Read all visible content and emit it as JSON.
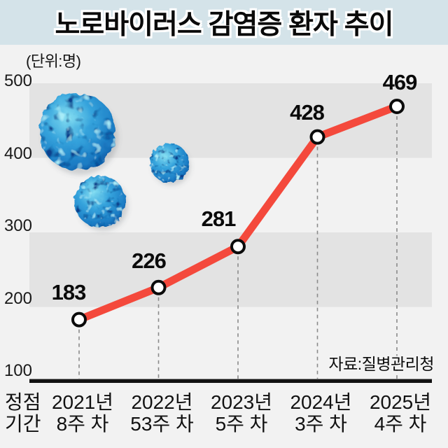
{
  "title": "노로바이러스 감염증 환자 추이",
  "unit_label": "(단위:명)",
  "source_label": "자료:질병관리청",
  "x_axis_caption": {
    "line1": "정점",
    "line2": "기간"
  },
  "colors": {
    "title_band": "#D4E3E9",
    "background": "#F2F2F2",
    "band_gray": "#E3E3E3",
    "line_red": "#F4493C",
    "axis_black": "#111111",
    "virus_blue": "#2E9AD8"
  },
  "icons": [
    "norovirus-particle-large",
    "norovirus-particle-medium",
    "norovirus-particle-small"
  ],
  "chart_data": {
    "type": "line",
    "title": "노로바이러스 감염증 환자 추이",
    "unit": "명",
    "categories": [
      [
        "2021년",
        "8주 차"
      ],
      [
        "2022년",
        "53주 차"
      ],
      [
        "2023년",
        "5주 차"
      ],
      [
        "2024년",
        "3주 차"
      ],
      [
        "2025년",
        "4주 차"
      ]
    ],
    "values": [
      183,
      226,
      281,
      428,
      469
    ],
    "y_ticks": [
      500,
      400,
      300,
      200,
      100
    ],
    "ylim": [
      100,
      500
    ],
    "xlabel": "정점 기간",
    "ylabel": "명",
    "grid": "alternating-horizontal-bands",
    "legend": "none",
    "marker": "white-circle-black-ring",
    "source": "질병관리청"
  }
}
